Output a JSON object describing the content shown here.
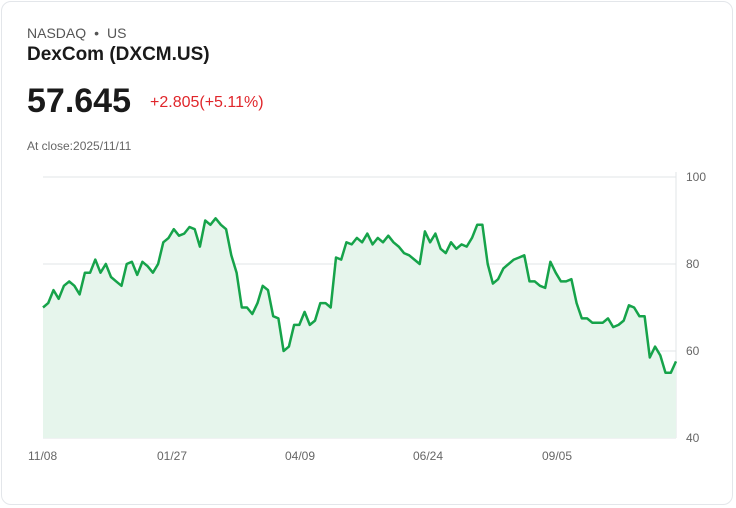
{
  "header": {
    "exchange": "NASDAQ",
    "separator": "•",
    "region": "US",
    "name": "DexCom (DXCM.US)",
    "price": "57.645",
    "change": "+2.805(+5.11%)",
    "close_label": "At close:2025/11/11"
  },
  "colors": {
    "line": "#16a34a",
    "fill": "#e6f5ec",
    "change": "#e0262b"
  },
  "chart_data": {
    "type": "area",
    "title": "",
    "xlabel": "",
    "ylabel": "",
    "ylim": [
      40,
      100
    ],
    "yticks": [
      "100",
      "80",
      "60",
      "40"
    ],
    "ytick_values": [
      100,
      80,
      60,
      40
    ],
    "xticks": [
      "11/08",
      "01/27",
      "04/09",
      "06/24",
      "09/05"
    ],
    "grid": true,
    "series": [
      {
        "name": "DXCM.US",
        "values": [
          70,
          71,
          74,
          72,
          75,
          76,
          75,
          73,
          78,
          78,
          81,
          78,
          80,
          77,
          76,
          75,
          80,
          80.5,
          77.5,
          80.5,
          79.5,
          78,
          80,
          85,
          86,
          88,
          86.5,
          87,
          88.5,
          88,
          84,
          90,
          89,
          90.5,
          89,
          88,
          82,
          78,
          70,
          70,
          68.5,
          71,
          75,
          74,
          68,
          67.5,
          60,
          61,
          66,
          66,
          69,
          66,
          67,
          71,
          71,
          70,
          81.5,
          81,
          85,
          84.5,
          86,
          85,
          87,
          84.5,
          86,
          85,
          86.5,
          85,
          84,
          82.5,
          82,
          81,
          80,
          87.5,
          85,
          87,
          83.5,
          82.5,
          85,
          83.5,
          84.5,
          84,
          86,
          89,
          89,
          80,
          75.5,
          76.5,
          79,
          80,
          81,
          81.5,
          82,
          76,
          76,
          75,
          74.5,
          80.5,
          78,
          76,
          76,
          76.5,
          71,
          67.5,
          67.5,
          66.5,
          66.5,
          66.5,
          67.5,
          65.5,
          66,
          67,
          70.5,
          70,
          68,
          68,
          58.5,
          61,
          59,
          55,
          55,
          57.6
        ]
      }
    ]
  }
}
